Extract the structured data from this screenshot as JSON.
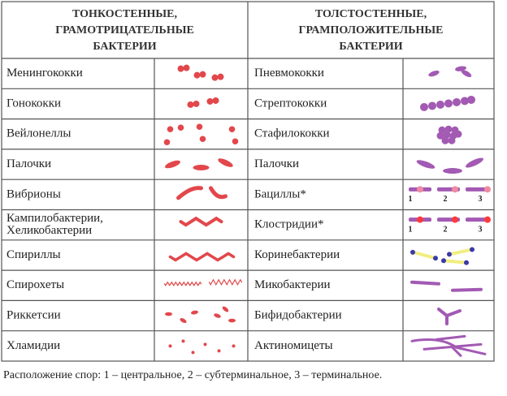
{
  "header": {
    "left": [
      "ТОНКОСТЕННЫЕ,",
      "ГРАМОТРИЦАТЕЛЬНЫЕ",
      "БАКТЕРИИ"
    ],
    "right": [
      "ТОЛСТОСТЕННЫЕ,",
      "ГРАМПОЛОЖИТЕЛЬНЫЕ",
      "БАКТЕРИИ"
    ]
  },
  "table": {
    "rows": [
      [
        [
          "Менингококки"
        ],
        [
          "Пневмококки"
        ]
      ],
      [
        [
          "Гонококки"
        ],
        [
          "Стрептококки"
        ]
      ],
      [
        [
          "Вейлонеллы"
        ],
        [
          "Стафилококки"
        ]
      ],
      [
        [
          "Палочки"
        ],
        [
          "Палочки"
        ]
      ],
      [
        [
          "Вибрионы"
        ],
        [
          "Бациллы*"
        ]
      ],
      [
        [
          "Кампилобактерии,",
          "Хеликобактерии"
        ],
        [
          "Клостридии*"
        ]
      ],
      [
        [
          "Спириллы"
        ],
        [
          "Коринебактерии"
        ]
      ],
      [
        [
          "Спирохеты"
        ],
        [
          "Микобактерии"
        ]
      ],
      [
        [
          "Риккетсии"
        ],
        [
          "Бифидобактерии"
        ]
      ],
      [
        [
          "Хламидии"
        ],
        [
          "Актиномицеты"
        ]
      ]
    ]
  },
  "spore_labels": [
    "1",
    "2",
    "3"
  ],
  "footer": "Расположение спор: 1 – центральное, 2 – субтерминальное, 3 – терминальное."
}
